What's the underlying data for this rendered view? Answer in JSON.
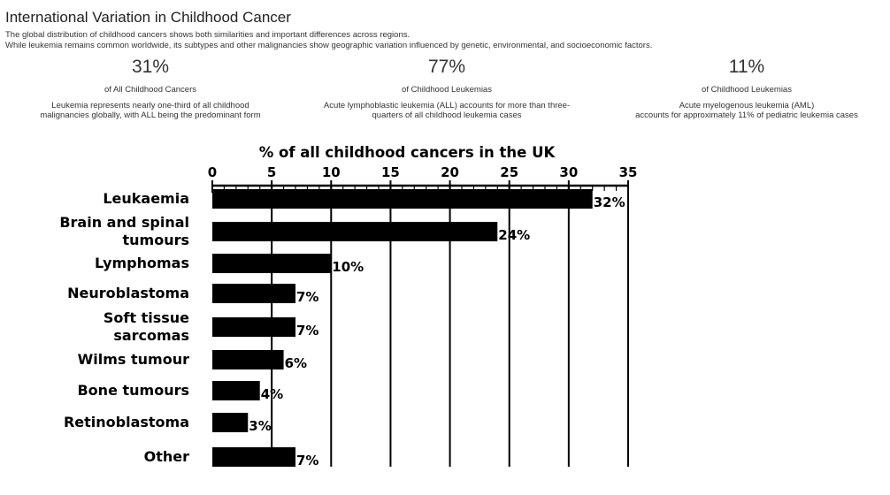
{
  "header": {
    "title": "International Variation in Childhood Cancer",
    "subtitle_lines": [
      "The global distribution of childhood cancers shows both similarities and important differences across regions.",
      "While leukemia remains common worldwide, its subtypes and other malignancies show geographic variation influenced by genetic, environmental, and socioeconomic factors."
    ]
  },
  "stats": [
    {
      "value": "31%",
      "label": "of All Childhood Cancers",
      "desc_lines": [
        "Leukemia represents nearly one-third of all childhood",
        "malignancies globally, with ALL being the predominant form"
      ]
    },
    {
      "value": "77%",
      "label": "of Childhood Leukemias",
      "desc_lines": [
        "Acute lymphoblastic leukemia (ALL) accounts for more than three-",
        "quarters of all childhood leukemia cases"
      ]
    },
    {
      "value": "11%",
      "label": "of Childhood Leukemias",
      "desc_lines": [
        "Acute myelogenous leukemia (AML)",
        "accounts for approximately 11% of pediatric leukemia cases"
      ]
    }
  ],
  "chart_data": {
    "type": "bar",
    "orientation": "horizontal",
    "title": "% of all childhood cancers in the UK",
    "categories": [
      [
        "Leukaemia"
      ],
      [
        "Brain and spinal",
        "tumours"
      ],
      [
        "Lymphomas"
      ],
      [
        "Neuroblastoma"
      ],
      [
        "Soft tissue",
        "sarcomas"
      ],
      [
        "Wilms tumour"
      ],
      [
        "Bone tumours"
      ],
      [
        "Retinoblastoma"
      ],
      [
        "Other"
      ]
    ],
    "values": [
      32,
      24,
      10,
      7,
      7,
      6,
      4,
      3,
      7
    ],
    "data_labels": [
      "32%",
      "24%",
      "10%",
      "7%",
      "7%",
      "6%",
      "4%",
      "3%",
      "7%"
    ],
    "xlim": [
      0,
      35
    ],
    "x_ticks": [
      0,
      5,
      10,
      15,
      20,
      25,
      30,
      35
    ],
    "x_axis_position": "top",
    "grid": true,
    "bar_color": "#000000"
  }
}
